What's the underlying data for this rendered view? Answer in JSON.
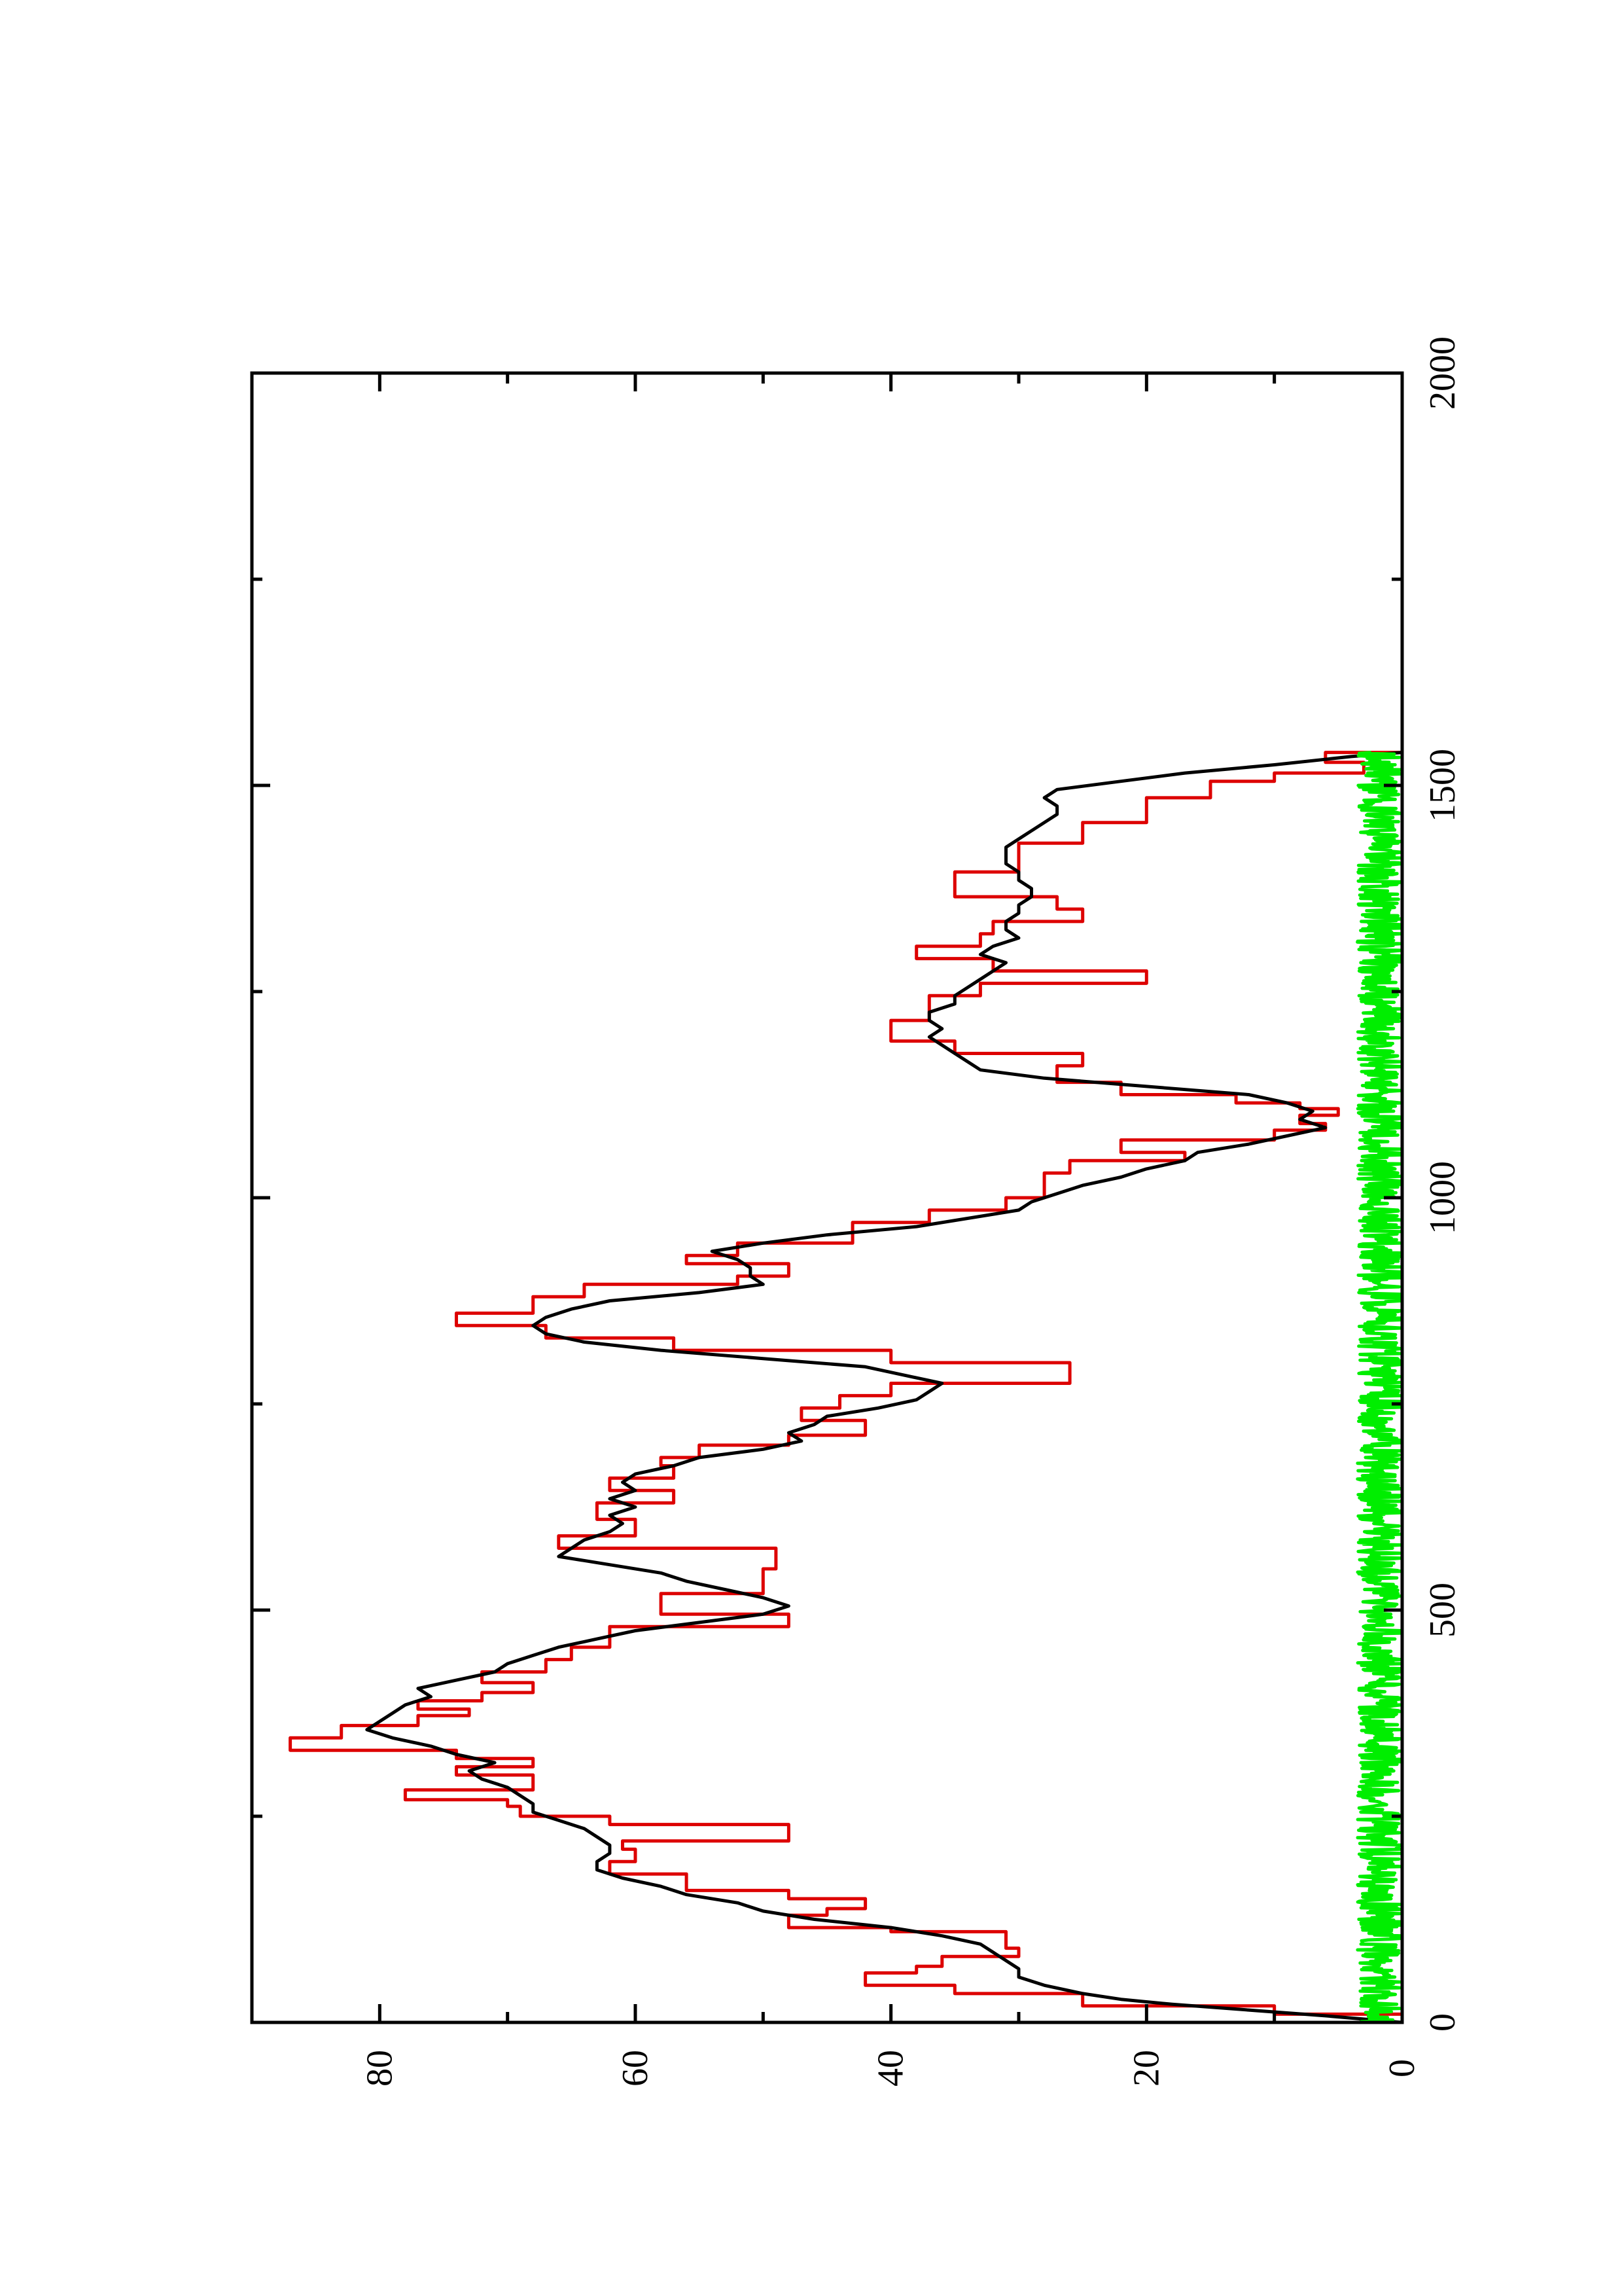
{
  "chart_data": {
    "type": "line",
    "title": "",
    "xlabel": "",
    "ylabel": "",
    "xlim": [
      0,
      2000
    ],
    "ylim": [
      0,
      90
    ],
    "x_ticks": [
      0,
      500,
      1000,
      1500,
      2000
    ],
    "x_minor_ticks": [
      250,
      750,
      1250,
      1750
    ],
    "y_ticks": [
      0,
      20,
      40,
      60,
      80
    ],
    "y_minor_ticks": [
      10,
      30,
      50,
      70
    ],
    "orientation": "rotated-90-ccw",
    "grid": false,
    "legend": "none",
    "series": [
      {
        "color": "#dd0000",
        "style": "step",
        "x": [
          0,
          10,
          20,
          35,
          45,
          60,
          68,
          80,
          90,
          110,
          115,
          130,
          138,
          150,
          160,
          180,
          195,
          210,
          220,
          240,
          250,
          262,
          270,
          282,
          300,
          310,
          320,
          330,
          345,
          360,
          372,
          380,
          390,
          400,
          412,
          425,
          440,
          455,
          480,
          495,
          520,
          550,
          575,
          590,
          610,
          630,
          645,
          660,
          675,
          685,
          700,
          712,
          730,
          745,
          760,
          775,
          800,
          815,
          830,
          845,
          860,
          880,
          895,
          905,
          920,
          930,
          945,
          970,
          985,
          1000,
          1030,
          1045,
          1055,
          1070,
          1082,
          1090,
          1100,
          1108,
          1115,
          1125,
          1140,
          1160,
          1175,
          1190,
          1200,
          1215,
          1230,
          1245,
          1260,
          1275,
          1290,
          1305,
          1320,
          1335,
          1350,
          1365,
          1380,
          1395,
          1410,
          1430,
          1455,
          1485,
          1505,
          1515,
          1528,
          1540
        ],
        "y": [
          0,
          10,
          25,
          35,
          42,
          38,
          36,
          30,
          31,
          40,
          48,
          45,
          42,
          48,
          56,
          62,
          60,
          61,
          48,
          62,
          69,
          70,
          78,
          68,
          74,
          68,
          74,
          87,
          83,
          77,
          73,
          77,
          72,
          68,
          72,
          67,
          65,
          62,
          48,
          58,
          50,
          49,
          66,
          60,
          63,
          57,
          62,
          57,
          58,
          55,
          48,
          42,
          47,
          44,
          40,
          26,
          40,
          57,
          67,
          74,
          68,
          64,
          52,
          48,
          56,
          52,
          43,
          37,
          31,
          28,
          26,
          17,
          22,
          10,
          6,
          8,
          5,
          8,
          13,
          22,
          27,
          25,
          35,
          40,
          40,
          37,
          37,
          33,
          20,
          32,
          38,
          33,
          32,
          25,
          27,
          35,
          35,
          30,
          30,
          25,
          20,
          15,
          10,
          3,
          6,
          0
        ]
      },
      {
        "color": "#000000",
        "style": "line",
        "x": [
          0,
          8,
          15,
          22,
          28,
          35,
          45,
          55,
          65,
          75,
          85,
          95,
          105,
          115,
          125,
          135,
          145,
          155,
          165,
          175,
          185,
          195,
          205,
          215,
          225,
          235,
          245,
          255,
          265,
          275,
          285,
          295,
          305,
          315,
          325,
          335,
          345,
          355,
          365,
          375,
          385,
          395,
          405,
          415,
          425,
          435,
          445,
          455,
          465,
          475,
          485,
          495,
          505,
          515,
          525,
          535,
          545,
          555,
          565,
          575,
          585,
          595,
          605,
          615,
          625,
          635,
          645,
          655,
          665,
          675,
          685,
          695,
          705,
          715,
          725,
          735,
          745,
          755,
          765,
          775,
          785,
          795,
          805,
          815,
          825,
          835,
          845,
          855,
          865,
          875,
          885,
          895,
          905,
          915,
          925,
          935,
          945,
          955,
          965,
          975,
          985,
          995,
          1005,
          1015,
          1025,
          1035,
          1045,
          1055,
          1065,
          1075,
          1085,
          1095,
          1105,
          1115,
          1125,
          1135,
          1145,
          1155,
          1165,
          1175,
          1185,
          1195,
          1205,
          1215,
          1225,
          1235,
          1245,
          1255,
          1265,
          1275,
          1285,
          1295,
          1305,
          1315,
          1325,
          1335,
          1345,
          1355,
          1365,
          1375,
          1385,
          1395,
          1405,
          1415,
          1425,
          1435,
          1445,
          1455,
          1465,
          1475,
          1485,
          1495,
          1505,
          1515,
          1525,
          1535,
          1540
        ],
        "y": [
          0,
          6,
          12,
          18,
          22,
          25,
          28,
          30,
          30,
          31,
          32,
          33,
          36,
          40,
          46,
          50,
          52,
          56,
          58,
          61,
          63,
          63,
          62,
          62,
          63,
          64,
          66,
          68,
          68,
          69,
          70,
          72,
          73,
          71,
          74,
          76,
          79,
          81,
          80,
          79,
          78,
          76,
          77,
          74,
          71,
          70,
          68,
          66,
          63,
          60,
          55,
          50,
          48,
          50,
          53,
          56,
          58,
          62,
          66,
          65,
          64,
          62,
          61,
          62,
          60,
          62,
          60,
          61,
          60,
          57,
          55,
          50,
          47,
          48,
          46,
          45,
          41,
          38,
          37,
          36,
          39,
          42,
          50,
          58,
          64,
          67,
          68,
          67,
          65,
          62,
          55,
          50,
          51,
          51,
          52,
          54,
          50,
          45,
          38,
          34,
          30,
          29,
          27,
          25,
          22,
          20,
          17,
          16,
          12,
          9,
          6,
          8,
          7,
          9,
          12,
          20,
          28,
          33,
          34,
          35,
          36,
          37,
          36,
          37,
          37,
          35,
          35,
          34,
          33,
          32,
          31,
          33,
          32,
          30,
          31,
          31,
          30,
          30,
          29,
          29,
          30,
          30,
          31,
          31,
          31,
          30,
          29,
          28,
          27,
          27,
          28,
          27,
          22,
          17,
          10,
          4,
          0
        ]
      },
      {
        "color": "#00ee00",
        "style": "noise",
        "x_range": [
          0,
          1540
        ],
        "amplitude": [
          0,
          3.5
        ],
        "seed": 7
      }
    ]
  }
}
